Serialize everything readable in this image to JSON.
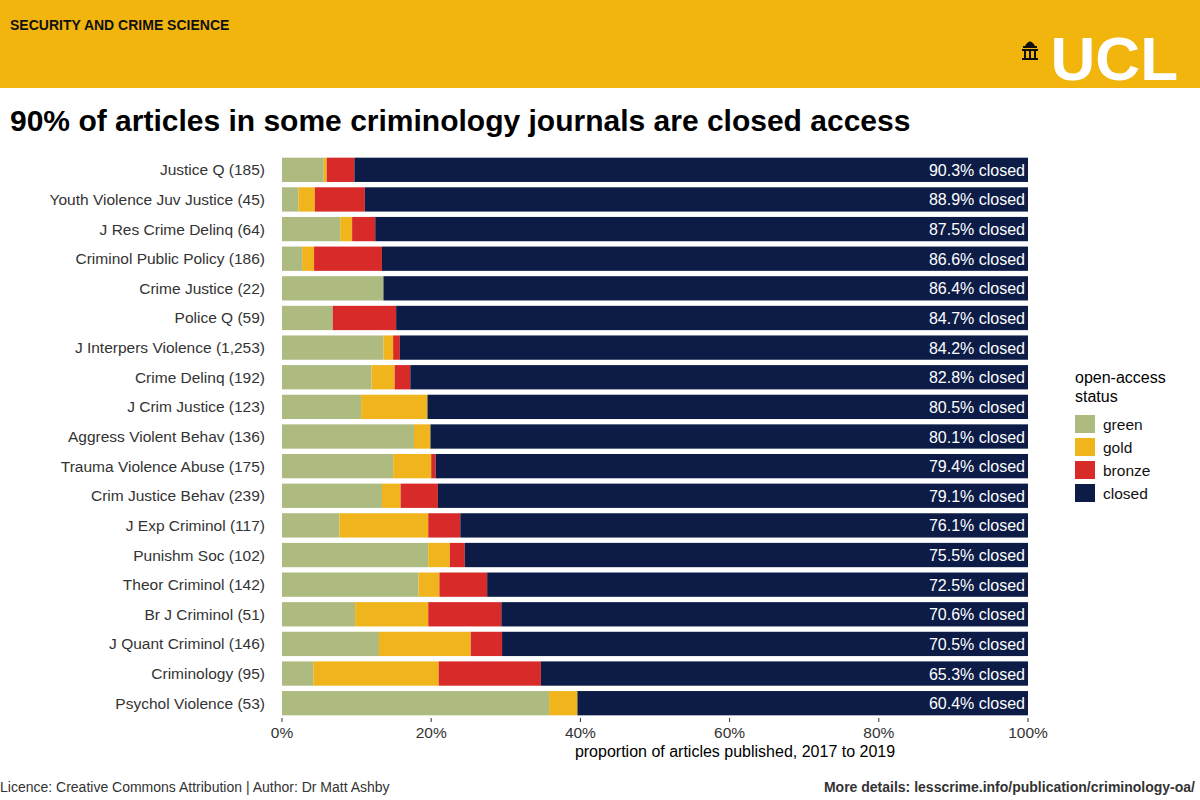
{
  "chart_data": {
    "type": "bar",
    "orientation": "horizontal",
    "stacked": true,
    "grid": false,
    "legend": "right",
    "header_text": "SECURITY AND CRIME SCIENCE",
    "logo_text": "UCL",
    "title": "90% of articles in some criminology journals are closed access",
    "xlabel": "proportion of articles published, 2017 to 2019",
    "legend_title": "open-access status",
    "footer_left": "Licence: Creative Commons Attribution | Author: Dr Matt Ashby",
    "footer_right": "More details: lesscrime.info/publication/criminology-oa/",
    "categories": [
      "Justice Q (185)",
      "Youth Violence Juv Justice (45)",
      "J Res Crime Delinq (64)",
      "Criminol Public Policy (186)",
      "Crime Justice (22)",
      "Police Q (59)",
      "J Interpers Violence (1,253)",
      "Crime Delinq (192)",
      "J Crim Justice (123)",
      "Aggress Violent Behav (136)",
      "Trauma Violence Abuse (175)",
      "Crim Justice Behav (239)",
      "J Exp Criminol (117)",
      "Punishm Soc (102)",
      "Theor Criminol (142)",
      "Br J Criminol (51)",
      "J Quant Criminol (146)",
      "Criminology (95)",
      "Psychol Violence (53)"
    ],
    "xlim": [
      0,
      100
    ],
    "xticks": [
      {
        "value": 0,
        "label": "0%"
      },
      {
        "value": 20,
        "label": "20%"
      },
      {
        "value": 40,
        "label": "40%"
      },
      {
        "value": 60,
        "label": "60%"
      },
      {
        "value": 80,
        "label": "80%"
      },
      {
        "value": 100,
        "label": "100%"
      }
    ],
    "series": [
      {
        "name": "green",
        "color": "#adbb80",
        "values": [
          5.6,
          2.2,
          7.8,
          2.7,
          13.6,
          6.8,
          13.6,
          12.0,
          10.6,
          17.7,
          14.9,
          13.4,
          7.7,
          19.6,
          18.3,
          9.8,
          13.0,
          4.2,
          35.8
        ]
      },
      {
        "name": "gold",
        "color": "#f0b41c",
        "values": [
          0.4,
          2.2,
          1.6,
          1.6,
          0,
          0,
          1.3,
          3.1,
          8.9,
          2.2,
          5.1,
          2.5,
          11.9,
          2.9,
          2.8,
          9.8,
          12.3,
          16.8,
          3.8
        ]
      },
      {
        "name": "bronze",
        "color": "#d92a2a",
        "values": [
          3.7,
          6.7,
          3.1,
          9.1,
          0,
          8.5,
          0.9,
          2.1,
          0,
          0,
          0.6,
          5.0,
          4.3,
          2.0,
          6.4,
          9.8,
          4.2,
          13.7,
          0
        ]
      },
      {
        "name": "closed",
        "color": "#0c1c47",
        "data_labels": true,
        "values": [
          90.3,
          88.9,
          87.5,
          86.6,
          86.4,
          84.7,
          84.2,
          82.8,
          80.5,
          80.1,
          79.4,
          79.1,
          76.1,
          75.5,
          72.5,
          70.6,
          70.5,
          65.3,
          60.4
        ],
        "value_labels": [
          "90.3% closed",
          "88.9% closed",
          "87.5% closed",
          "86.6% closed",
          "86.4% closed",
          "84.7% closed",
          "84.2% closed",
          "82.8% closed",
          "80.5% closed",
          "80.1% closed",
          "79.4% closed",
          "79.1% closed",
          "76.1% closed",
          "75.5% closed",
          "72.5% closed",
          "70.6% closed",
          "70.5% closed",
          "65.3% closed",
          "60.4% closed"
        ]
      }
    ]
  }
}
